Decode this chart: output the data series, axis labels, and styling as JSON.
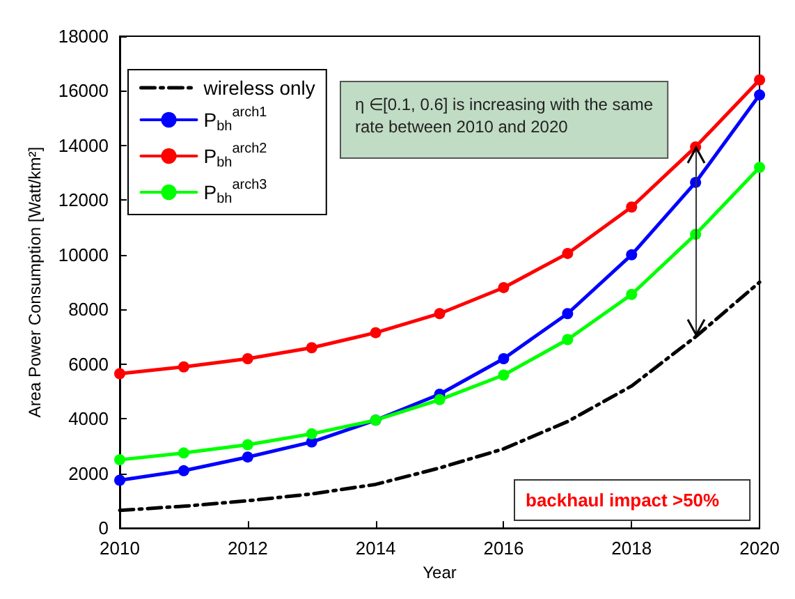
{
  "chart_data": {
    "type": "line",
    "xlabel": "Year",
    "ylabel": "Area Power Consumption [Watt/km²]",
    "x": [
      2010,
      2011,
      2012,
      2013,
      2014,
      2015,
      2016,
      2017,
      2018,
      2019,
      2020
    ],
    "series": [
      {
        "name": "wireless only",
        "color": "#000000",
        "marker": "none",
        "line_style": "dashed",
        "values": [
          650,
          800,
          1000,
          1250,
          1600,
          2200,
          2900,
          3900,
          5200,
          7000,
          9000
        ]
      },
      {
        "name": "P$_{bh}$$^{arch1}$",
        "color": "#0000ff",
        "values": [
          1750,
          2100,
          2600,
          3150,
          3950,
          4900,
          6200,
          7850,
          10000,
          12650,
          15850
        ]
      },
      {
        "name": "P$_{bh}$$^{arch2}$",
        "color": "#ff0000",
        "values": [
          5650,
          5900,
          6200,
          6600,
          7150,
          7850,
          8800,
          10050,
          11750,
          13950,
          16400
        ]
      },
      {
        "name": "P$_{bh}$$^{arch3}$",
        "color": "#00ff00",
        "values": [
          2500,
          2750,
          3050,
          3450,
          3950,
          4700,
          5600,
          6900,
          8550,
          10750,
          13200
        ]
      }
    ],
    "marker": "circle",
    "line_style": "solid",
    "xlim": [
      2010,
      2020
    ],
    "xticks": [
      2010,
      2012,
      2014,
      2016,
      2018,
      2020
    ],
    "ylim": [
      0,
      18000
    ],
    "yticks": [
      0,
      2000,
      4000,
      6000,
      8000,
      10000,
      12000,
      14000,
      16000,
      18000
    ],
    "grid": false,
    "legend": "top left",
    "annotations": [
      "η ∈[0.1, 0.6] is increasing with the same\nrate between 2010 and 2020",
      "backhaul impact >50%"
    ]
  }
}
